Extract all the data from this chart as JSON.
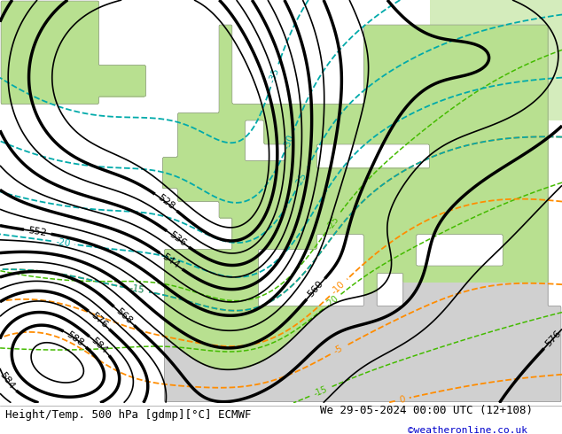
{
  "title_left": "Height/Temp. 500 hPa [gdmp][°C] ECMWF",
  "title_right": "We 29-05-2024 00:00 UTC (12+108)",
  "credit": "©weatheronline.co.uk",
  "bg_color": "#ffffff",
  "ocean_color": "#c8c8c8",
  "land_color": "#d0d0d0",
  "green_shade": "#b8e090",
  "z500_color": "#000000",
  "temp_neg_color": "#00aaaa",
  "temp_pos_color": "#ff8c00",
  "green_line_color": "#44bb00",
  "title_fontsize": 9.0,
  "credit_fontsize": 8.0,
  "credit_color": "#0000cc",
  "lon_min": -35,
  "lon_max": 50,
  "lat_min": 25,
  "lat_max": 75
}
